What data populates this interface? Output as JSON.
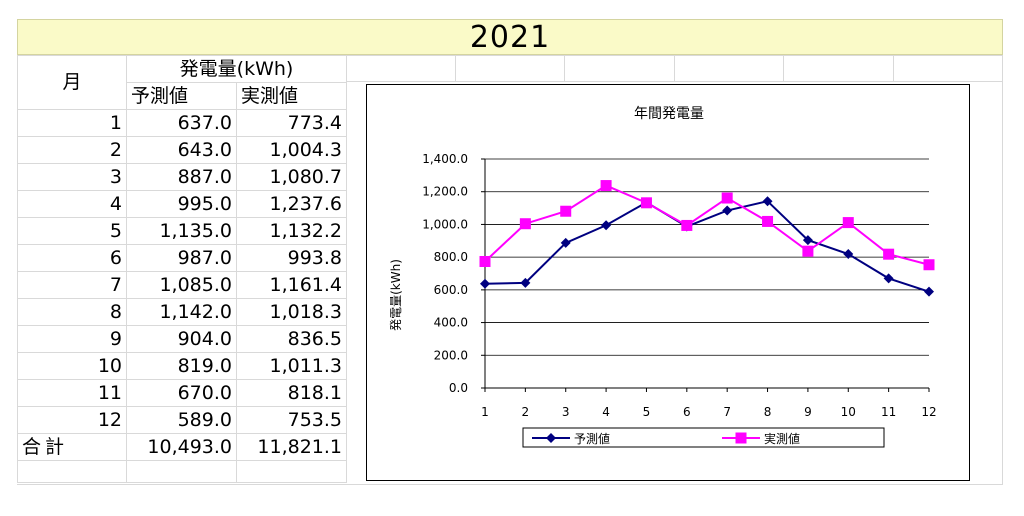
{
  "sheet": {
    "title": "2021",
    "header_month": "月",
    "header_group": "発電量(kWh)",
    "header_forecast": "予測値",
    "header_actual": "実測値",
    "rows": [
      {
        "month": "1",
        "forecast": "637.0",
        "actual": "773.4"
      },
      {
        "month": "2",
        "forecast": "643.0",
        "actual": "1,004.3"
      },
      {
        "month": "3",
        "forecast": "887.0",
        "actual": "1,080.7"
      },
      {
        "month": "4",
        "forecast": "995.0",
        "actual": "1,237.6"
      },
      {
        "month": "5",
        "forecast": "1,135.0",
        "actual": "1,132.2"
      },
      {
        "month": "6",
        "forecast": "987.0",
        "actual": "993.8"
      },
      {
        "month": "7",
        "forecast": "1,085.0",
        "actual": "1,161.4"
      },
      {
        "month": "8",
        "forecast": "1,142.0",
        "actual": "1,018.3"
      },
      {
        "month": "9",
        "forecast": "904.0",
        "actual": "836.5"
      },
      {
        "month": "10",
        "forecast": "819.0",
        "actual": "1,011.3"
      },
      {
        "month": "11",
        "forecast": "670.0",
        "actual": "818.1"
      },
      {
        "month": "12",
        "forecast": "589.0",
        "actual": "753.5"
      }
    ],
    "total_label": "合計",
    "total_forecast": "10,493.0",
    "total_actual": "11,821.1"
  },
  "chart_data": {
    "type": "line",
    "title": "年間発電量",
    "xlabel": "",
    "ylabel": "発電量(kWh)",
    "categories": [
      "1",
      "2",
      "3",
      "4",
      "5",
      "6",
      "7",
      "8",
      "9",
      "10",
      "11",
      "12"
    ],
    "ylim": [
      0,
      1400
    ],
    "yticks": [
      "0.0",
      "200.0",
      "400.0",
      "600.0",
      "800.0",
      "1,000.0",
      "1,200.0",
      "1,400.0"
    ],
    "ytick_values": [
      0,
      200,
      400,
      600,
      800,
      1000,
      1200,
      1400
    ],
    "grid": true,
    "legend_position": "bottom",
    "series": [
      {
        "name": "予測値",
        "color": "#000080",
        "marker": "diamond",
        "values": [
          637.0,
          643.0,
          887.0,
          995.0,
          1135.0,
          987.0,
          1085.0,
          1142.0,
          904.0,
          819.0,
          670.0,
          589.0
        ]
      },
      {
        "name": "実測値",
        "color": "#ff00ff",
        "marker": "square",
        "values": [
          773.4,
          1004.3,
          1080.7,
          1237.6,
          1132.2,
          993.8,
          1161.4,
          1018.3,
          836.5,
          1011.3,
          818.1,
          753.5
        ]
      }
    ]
  }
}
